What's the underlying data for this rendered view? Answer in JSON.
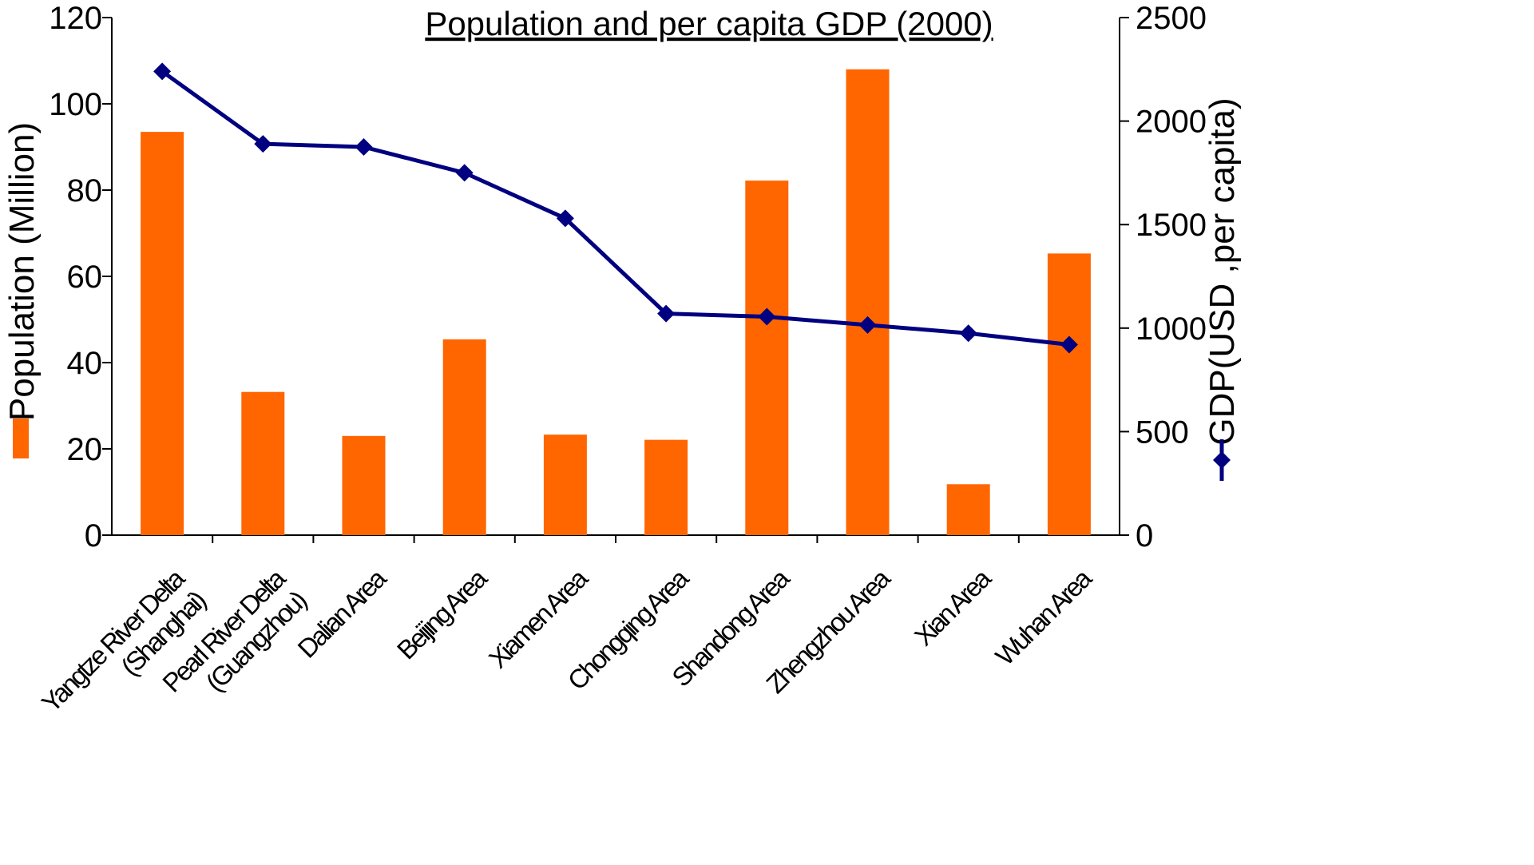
{
  "chart_data": {
    "type": "bar",
    "title": "Population and per capita GDP (2000)",
    "categories": [
      [
        "Yangtze River Delta",
        "(Shanghai)"
      ],
      [
        "Pearl River Delta",
        "(Guangzhou)"
      ],
      [
        "Dalian Area"
      ],
      [
        "Beijing Area"
      ],
      [
        "Xiamen Area"
      ],
      [
        "Chongqing Area"
      ],
      [
        "Shandong Area"
      ],
      [
        "Zhengzhou Area"
      ],
      [
        "Xian Area"
      ],
      [
        "Wuhan Area"
      ]
    ],
    "series": [
      {
        "name": "Population (Million)",
        "type": "bar",
        "axis": "left",
        "color": "#ff6600",
        "values": [
          93.5,
          33.2,
          23.0,
          45.4,
          23.3,
          22.1,
          82.2,
          108.0,
          11.8,
          65.3
        ]
      },
      {
        "name": "GDP(USD ,per capita)",
        "type": "line",
        "axis": "right",
        "color": "#000080",
        "values": [
          2240,
          1890,
          1875,
          1750,
          1530,
          1070,
          1055,
          1015,
          975,
          920
        ]
      }
    ],
    "ylabel": "Population (Million)",
    "y2label": "GDP(USD ,per capita)",
    "ylim": [
      0,
      120
    ],
    "y2lim": [
      0,
      2500
    ],
    "yticks": [
      "0",
      "20",
      "40",
      "60",
      "80",
      "100",
      "120"
    ],
    "y2ticks": [
      "0",
      "500",
      "1000",
      "1500",
      "2000",
      "2500"
    ],
    "grid": false
  }
}
